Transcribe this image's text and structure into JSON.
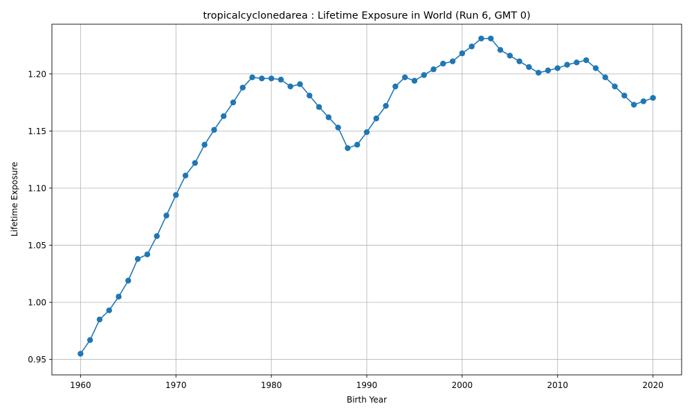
{
  "chart_data": {
    "type": "line",
    "title": "tropicalcyclonedarea : Lifetime Exposure in World (Run 6, GMT 0)",
    "xlabel": "Birth Year",
    "ylabel": "Lifetime Exposure",
    "xlim": [
      1957,
      2023
    ],
    "ylim": [
      0.9365,
      1.2435
    ],
    "xticks": [
      1960,
      1970,
      1980,
      1990,
      2000,
      2010,
      2020
    ],
    "xtick_labels": [
      "1960",
      "1970",
      "1980",
      "1990",
      "2000",
      "2010",
      "2020"
    ],
    "yticks": [
      0.95,
      1.0,
      1.05,
      1.1,
      1.15,
      1.2
    ],
    "ytick_labels": [
      "0.95",
      "1.00",
      "1.05",
      "1.10",
      "1.15",
      "1.20"
    ],
    "grid": true,
    "color": "#1f77b4",
    "marker": "circle",
    "x": [
      1960,
      1961,
      1962,
      1963,
      1964,
      1965,
      1966,
      1967,
      1968,
      1969,
      1970,
      1971,
      1972,
      1973,
      1974,
      1975,
      1976,
      1977,
      1978,
      1979,
      1980,
      1981,
      1982,
      1983,
      1984,
      1985,
      1986,
      1987,
      1988,
      1989,
      1990,
      1991,
      1992,
      1993,
      1994,
      1995,
      1996,
      1997,
      1998,
      1999,
      2000,
      2001,
      2002,
      2003,
      2004,
      2005,
      2006,
      2007,
      2008,
      2009,
      2010,
      2011,
      2012,
      2013,
      2014,
      2015,
      2016,
      2017,
      2018,
      2019,
      2020
    ],
    "y": [
      0.955,
      0.967,
      0.985,
      0.993,
      1.005,
      1.019,
      1.038,
      1.042,
      1.058,
      1.076,
      1.094,
      1.111,
      1.122,
      1.138,
      1.151,
      1.163,
      1.175,
      1.188,
      1.197,
      1.196,
      1.196,
      1.195,
      1.189,
      1.191,
      1.181,
      1.171,
      1.162,
      1.153,
      1.135,
      1.138,
      1.149,
      1.161,
      1.172,
      1.189,
      1.197,
      1.194,
      1.199,
      1.204,
      1.209,
      1.211,
      1.218,
      1.224,
      1.231,
      1.231,
      1.221,
      1.216,
      1.211,
      1.206,
      1.201,
      1.203,
      1.205,
      1.208,
      1.21,
      1.212,
      1.205,
      1.197,
      1.189,
      1.181,
      1.173,
      1.176,
      1.179
    ]
  }
}
